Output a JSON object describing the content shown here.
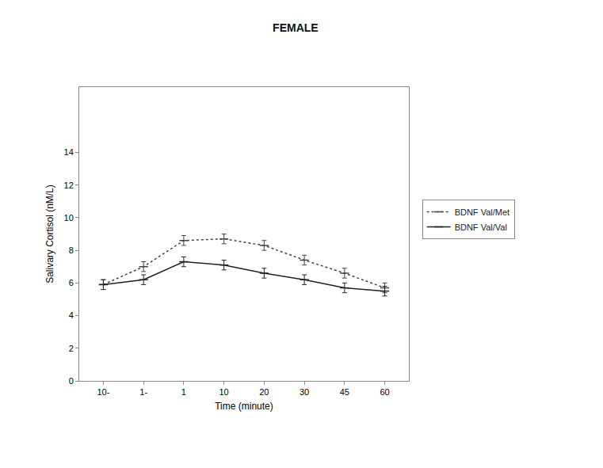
{
  "chart_data": {
    "type": "line",
    "title": "FEMALE",
    "x_label": "Time (minute)",
    "y_label": "Salivary Cortisol (nM/L)",
    "categories": [
      "10-",
      "1-",
      "1",
      "10",
      "20",
      "30",
      "45",
      "60"
    ],
    "series": [
      {
        "name": "BDNF Val/Met",
        "color": "#444444",
        "line_style": "dot",
        "marker": "line-ew",
        "values": [
          5.9,
          7.0,
          8.6,
          8.7,
          8.3,
          7.4,
          6.6,
          5.7
        ],
        "errors": [
          0.3,
          0.3,
          0.3,
          0.3,
          0.3,
          0.3,
          0.3,
          0.3
        ]
      },
      {
        "name": "BDNF Val/Val",
        "color": "#222222",
        "line_style": "solid",
        "marker": "line-ew",
        "values": [
          5.9,
          6.2,
          7.3,
          7.1,
          6.6,
          6.2,
          5.7,
          5.5
        ],
        "errors": [
          0.3,
          0.3,
          0.3,
          0.3,
          0.3,
          0.3,
          0.3,
          0.3
        ]
      }
    ],
    "ylim": [
      0,
      18
    ],
    "yticks": [
      0,
      2,
      4,
      6,
      8,
      10,
      12,
      14
    ],
    "grid": false,
    "legend": "right"
  }
}
